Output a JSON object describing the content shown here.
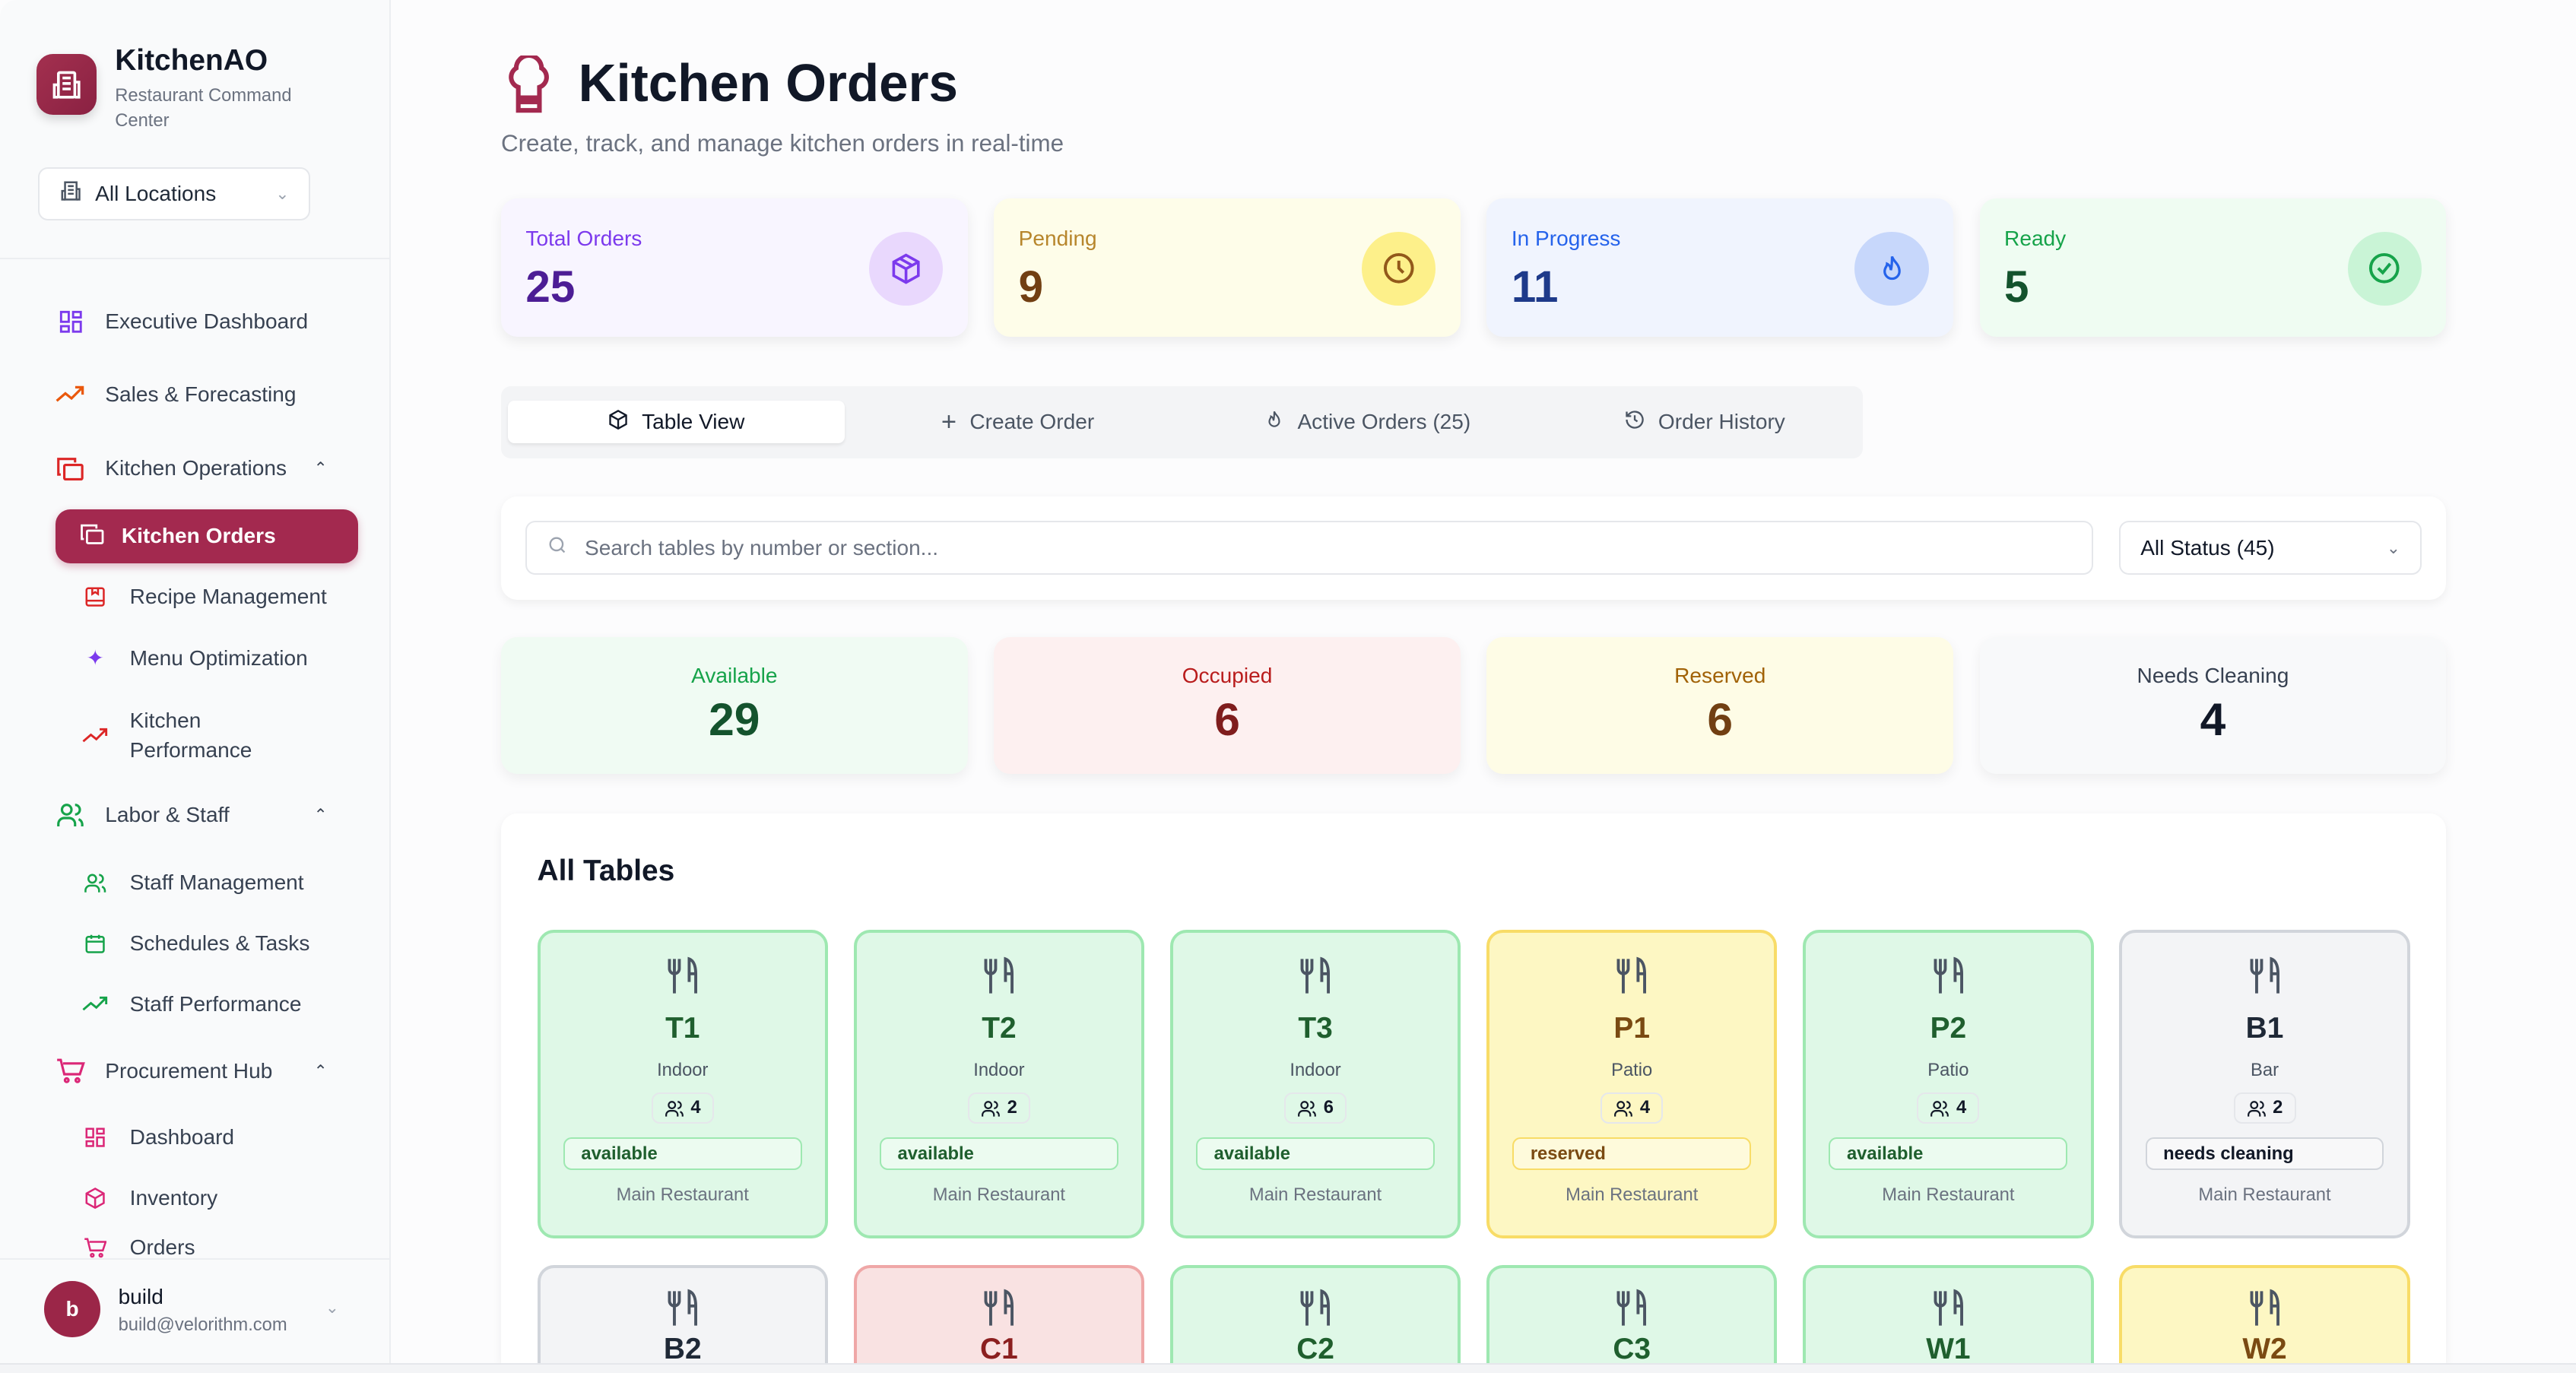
{
  "app": {
    "name": "KitchenAO",
    "subtitle": "Restaurant Command Center"
  },
  "location_select": {
    "value": "All Locations"
  },
  "nav": {
    "executive_dashboard": "Executive Dashboard",
    "sales_forecasting": "Sales & Forecasting",
    "kitchen_operations": "Kitchen Operations",
    "kitchen_orders": "Kitchen Orders",
    "recipe_management": "Recipe Management",
    "menu_optimization": "Menu Optimization",
    "kitchen_performance_1": "Kitchen",
    "kitchen_performance_2": "Performance",
    "labor_staff": "Labor & Staff",
    "staff_management": "Staff Management",
    "schedules_tasks": "Schedules & Tasks",
    "staff_performance": "Staff Performance",
    "procurement_hub": "Procurement Hub",
    "dashboard": "Dashboard",
    "inventory": "Inventory",
    "orders": "Orders"
  },
  "user": {
    "initial": "b",
    "name": "build",
    "email": "build@velorithm.com"
  },
  "header": {
    "title": "Kitchen Orders",
    "subtitle": "Create, track, and manage kitchen orders in real-time"
  },
  "stats": [
    {
      "label": "Total Orders",
      "value": "25",
      "icon": "package-icon"
    },
    {
      "label": "Pending",
      "value": "9",
      "icon": "clock-icon"
    },
    {
      "label": "In Progress",
      "value": "11",
      "icon": "flame-icon"
    },
    {
      "label": "Ready",
      "value": "5",
      "icon": "check-circle-icon"
    }
  ],
  "tabs": [
    {
      "label": "Table View",
      "active": true
    },
    {
      "label": "Create Order"
    },
    {
      "label": "Active Orders (25)"
    },
    {
      "label": "Order History"
    }
  ],
  "search": {
    "placeholder": "Search tables by number or section...",
    "status_filter": "All Status (45)"
  },
  "table_status": [
    {
      "label": "Available",
      "value": "29"
    },
    {
      "label": "Occupied",
      "value": "6"
    },
    {
      "label": "Reserved",
      "value": "6"
    },
    {
      "label": "Needs Cleaning",
      "value": "4"
    }
  ],
  "tables_section": {
    "title": "All Tables"
  },
  "tables": [
    {
      "name": "T1",
      "area": "Indoor",
      "capacity": "4",
      "status": "available",
      "location": "Main Restaurant"
    },
    {
      "name": "T2",
      "area": "Indoor",
      "capacity": "2",
      "status": "available",
      "location": "Main Restaurant"
    },
    {
      "name": "T3",
      "area": "Indoor",
      "capacity": "6",
      "status": "available",
      "location": "Main Restaurant"
    },
    {
      "name": "P1",
      "area": "Patio",
      "capacity": "4",
      "status": "reserved",
      "location": "Main Restaurant"
    },
    {
      "name": "P2",
      "area": "Patio",
      "capacity": "4",
      "status": "available",
      "location": "Main Restaurant"
    },
    {
      "name": "B1",
      "area": "Bar",
      "capacity": "2",
      "status": "needs cleaning",
      "location": "Main Restaurant"
    },
    {
      "name": "B2",
      "status": "needs cleaning"
    },
    {
      "name": "C1",
      "status": "occupied"
    },
    {
      "name": "C2",
      "status": "available"
    },
    {
      "name": "C3",
      "status": "available"
    },
    {
      "name": "W1",
      "status": "available"
    },
    {
      "name": "W2",
      "status": "reserved"
    }
  ],
  "colors": {
    "brand": "#a3294f",
    "available": "#dff8e7",
    "occupied": "#fbe3e3",
    "reserved": "#fef8c6",
    "cleaning": "#f3f4f6"
  }
}
